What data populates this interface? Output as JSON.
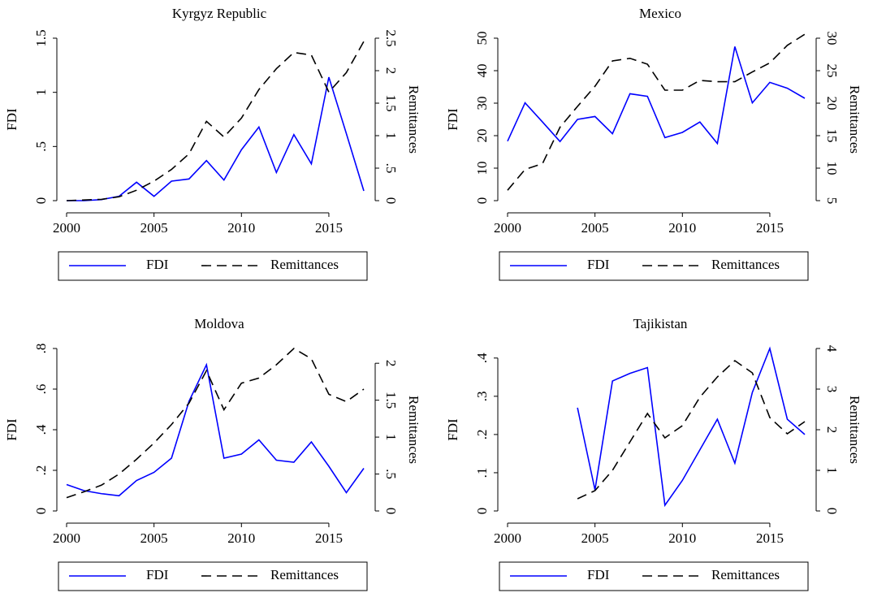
{
  "chart_data": [
    {
      "type": "line",
      "title": "Kyrgyz Republic",
      "ylabel": "FDI",
      "y2label": "Remittances",
      "x": [
        2000,
        2001,
        2002,
        2003,
        2004,
        2005,
        2006,
        2007,
        2008,
        2009,
        2010,
        2011,
        2012,
        2013,
        2014,
        2015,
        2016,
        2017
      ],
      "xlim": [
        2000,
        2017
      ],
      "xticks": [
        2000,
        2005,
        2010,
        2015
      ],
      "ylim": [
        0,
        1.5
      ],
      "yticks": [
        0,
        {
          "value": 0.5,
          "label": ".5"
        },
        1,
        1.5
      ],
      "y2lim": [
        0,
        2.5
      ],
      "y2ticks": [
        0,
        {
          "value": 0.5,
          "label": ".5"
        },
        1,
        1.5,
        2,
        2.5
      ],
      "series": [
        {
          "name": "FDI",
          "color": "#0000ff",
          "line_style": "solid",
          "values": [
            0,
            0,
            0.01,
            0.04,
            0.17,
            0.04,
            0.18,
            0.2,
            0.37,
            0.19,
            0.47,
            0.68,
            0.26,
            0.61,
            0.34,
            1.14,
            0.62,
            0.09
          ]
        },
        {
          "name": "Remittances",
          "color": "#000000",
          "line_style": "dashed",
          "axis": "y2",
          "values": [
            0,
            0.01,
            0.02,
            0.06,
            0.16,
            0.3,
            0.48,
            0.72,
            1.22,
            0.98,
            1.27,
            1.71,
            2.03,
            2.28,
            2.24,
            1.67,
            1.97,
            2.45
          ]
        }
      ]
    },
    {
      "type": "line",
      "title": "Mexico",
      "ylabel": "FDI",
      "y2label": "Remittances",
      "x": [
        2000,
        2001,
        2002,
        2003,
        2004,
        2005,
        2006,
        2007,
        2008,
        2009,
        2010,
        2011,
        2012,
        2013,
        2014,
        2015,
        2016,
        2017
      ],
      "xlim": [
        2000,
        2017
      ],
      "xticks": [
        2000,
        2005,
        2010,
        2015
      ],
      "ylim": [
        0,
        50
      ],
      "yticks": [
        0,
        10,
        20,
        30,
        40,
        50
      ],
      "y2lim": [
        5,
        30
      ],
      "y2ticks": [
        5,
        10,
        15,
        20,
        25,
        30
      ],
      "series": [
        {
          "name": "FDI",
          "color": "#0000ff",
          "line_style": "solid",
          "values": [
            18.3,
            30.1,
            24.2,
            18.2,
            25,
            25.9,
            20.6,
            32.9,
            32.1,
            19.4,
            21,
            24.2,
            17.6,
            47.4,
            30.1,
            36.4,
            34.6,
            31.5
          ]
        },
        {
          "name": "Remittances",
          "color": "#000000",
          "line_style": "dashed",
          "axis": "y2",
          "values": [
            6.6,
            9.8,
            10.7,
            16.3,
            19.5,
            22.6,
            26.5,
            26.9,
            26,
            22,
            22,
            23.5,
            23.3,
            23.3,
            24.8,
            26.2,
            28.9,
            30.6
          ]
        }
      ]
    },
    {
      "type": "line",
      "title": "Moldova",
      "ylabel": "FDI",
      "y2label": "Remittances",
      "x": [
        2000,
        2001,
        2002,
        2003,
        2004,
        2005,
        2006,
        2007,
        2008,
        2009,
        2010,
        2011,
        2012,
        2013,
        2014,
        2015,
        2016,
        2017
      ],
      "xlim": [
        2000,
        2017
      ],
      "xticks": [
        2000,
        2005,
        2010,
        2015
      ],
      "ylim": [
        0,
        0.8
      ],
      "yticks": [
        0,
        {
          "value": 0.2,
          "label": ".2"
        },
        {
          "value": 0.4,
          "label": ".4"
        },
        {
          "value": 0.6,
          "label": ".6"
        },
        {
          "value": 0.8,
          "label": ".8"
        }
      ],
      "y2lim": [
        0,
        2.2
      ],
      "y2ticks": [
        0,
        {
          "value": 0.5,
          "label": ".5"
        },
        1,
        1.5,
        2
      ],
      "series": [
        {
          "name": "FDI",
          "color": "#0000ff",
          "line_style": "solid",
          "values": [
            0.13,
            0.1,
            0.085,
            0.075,
            0.15,
            0.19,
            0.26,
            0.54,
            0.72,
            0.26,
            0.28,
            0.35,
            0.25,
            0.24,
            0.34,
            0.22,
            0.09,
            0.21
          ]
        },
        {
          "name": "Remittances",
          "color": "#000000",
          "line_style": "dashed",
          "axis": "y2",
          "values": [
            0.18,
            0.26,
            0.35,
            0.5,
            0.7,
            0.92,
            1.17,
            1.46,
            1.9,
            1.37,
            1.73,
            1.8,
            1.98,
            2.2,
            2.06,
            1.58,
            1.48,
            1.65
          ]
        }
      ]
    },
    {
      "type": "line",
      "title": "Tajikistan",
      "ylabel": "FDI",
      "y2label": "Remittances",
      "x": [
        2004,
        2005,
        2006,
        2007,
        2008,
        2009,
        2010,
        2011,
        2012,
        2013,
        2014,
        2015,
        2016,
        2017
      ],
      "xlim": [
        2000,
        2017
      ],
      "xticks": [
        2000,
        2005,
        2010,
        2015
      ],
      "ylim": [
        0,
        0.425
      ],
      "yticks": [
        0,
        {
          "value": 0.1,
          "label": ".1"
        },
        {
          "value": 0.2,
          "label": ".2"
        },
        {
          "value": 0.3,
          "label": ".3"
        },
        {
          "value": 0.4,
          "label": ".4"
        }
      ],
      "y2lim": [
        0,
        4
      ],
      "y2ticks": [
        0,
        1,
        2,
        3,
        4
      ],
      "series": [
        {
          "name": "FDI",
          "color": "#0000ff",
          "line_style": "solid",
          "values": [
            0.27,
            0.055,
            0.34,
            0.36,
            0.375,
            0.015,
            0.08,
            0.16,
            0.24,
            0.125,
            0.31,
            0.425,
            0.24,
            0.2
          ]
        },
        {
          "name": "Remittances",
          "color": "#000000",
          "line_style": "dashed",
          "axis": "y2",
          "values": [
            0.3,
            0.5,
            1.0,
            1.7,
            2.4,
            1.8,
            2.1,
            2.8,
            3.3,
            3.7,
            3.4,
            2.3,
            1.9,
            2.2
          ]
        }
      ]
    }
  ]
}
